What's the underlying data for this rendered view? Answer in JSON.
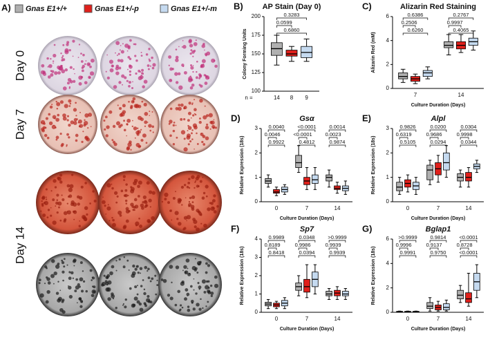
{
  "panel_a": {
    "label": "A)",
    "legend": [
      {
        "name": "Gnas E1+/+",
        "color": "#b0b0b0"
      },
      {
        "name": "Gnas E1+/-p",
        "color": "#e0201b"
      },
      {
        "name": "Gnas E1+/-m",
        "color": "#c5daf0"
      }
    ],
    "rows": [
      "Day 0",
      "Day 7",
      "Day 14"
    ]
  },
  "chart_data": [
    {
      "type": "box",
      "panel": "B)",
      "title": "AP Stain (Day 0)",
      "ylabel": "Colony Forming Units",
      "ylim": [
        100,
        200
      ],
      "yticks": [
        100,
        125,
        150,
        175,
        200
      ],
      "n_label": "n =",
      "n": [
        14,
        8,
        9
      ],
      "series": [
        {
          "color": "#b0b0b0",
          "boxes": [
            {
              "min": 135,
              "q1": 148,
              "median": 157,
              "q3": 165,
              "max": 175
            }
          ]
        },
        {
          "color": "#e0201b",
          "boxes": [
            {
              "min": 140,
              "q1": 147,
              "median": 150,
              "q3": 155,
              "max": 160
            }
          ]
        },
        {
          "color": "#c5daf0",
          "boxes": [
            {
              "min": 140,
              "q1": 145,
              "median": 152,
              "q3": 160,
              "max": 170
            }
          ]
        }
      ],
      "annotations": [
        "0.3283",
        "0.0599",
        "0.6860"
      ]
    },
    {
      "type": "box",
      "panel": "C)",
      "title": "Alizarin Red Staining",
      "ylabel": "Alizarin Red (mM)",
      "xlabel": "Culture Duration (Days)",
      "categories": [
        "7",
        "14"
      ],
      "ylim": [
        0,
        6
      ],
      "yticks": [
        0,
        2,
        4,
        6
      ],
      "series": [
        {
          "color": "#b0b0b0",
          "boxes": [
            {
              "min": 0.5,
              "q1": 0.8,
              "median": 1.0,
              "q3": 1.3,
              "max": 1.6
            },
            {
              "min": 2.8,
              "q1": 3.4,
              "median": 3.6,
              "q3": 3.9,
              "max": 4.5
            }
          ]
        },
        {
          "color": "#e0201b",
          "boxes": [
            {
              "min": 0.4,
              "q1": 0.6,
              "median": 0.8,
              "q3": 1.0,
              "max": 1.2
            },
            {
              "min": 3.0,
              "q1": 3.3,
              "median": 3.6,
              "q3": 3.9,
              "max": 4.5
            }
          ]
        },
        {
          "color": "#c5daf0",
          "boxes": [
            {
              "min": 0.8,
              "q1": 1.0,
              "median": 1.3,
              "q3": 1.5,
              "max": 1.8
            },
            {
              "min": 3.2,
              "q1": 3.6,
              "median": 3.9,
              "q3": 4.2,
              "max": 4.8
            }
          ]
        }
      ],
      "annotations": [
        "0.6386",
        "0.2506",
        "0.6260",
        "0.2767",
        "0.9997",
        "0.4065"
      ]
    },
    {
      "type": "box",
      "panel": "D)",
      "title": "Gsα",
      "title_italic": true,
      "ylabel": "Relative Expression (18s)",
      "xlabel": "Culture Duration (Days)",
      "categories": [
        "0",
        "7",
        "14"
      ],
      "ylim": [
        0,
        3
      ],
      "yticks": [
        0,
        1,
        2,
        3
      ],
      "series": [
        {
          "color": "#b0b0b0",
          "boxes": [
            {
              "min": 0.6,
              "q1": 0.75,
              "median": 0.85,
              "q3": 0.95,
              "max": 1.1
            },
            {
              "min": 1.2,
              "q1": 1.4,
              "median": 1.6,
              "q3": 1.9,
              "max": 2.3
            },
            {
              "min": 0.6,
              "q1": 0.85,
              "median": 1.0,
              "q3": 1.1,
              "max": 1.3
            }
          ]
        },
        {
          "color": "#e0201b",
          "boxes": [
            {
              "min": 0.25,
              "q1": 0.35,
              "median": 0.4,
              "q3": 0.5,
              "max": 0.6
            },
            {
              "min": 0.5,
              "q1": 0.7,
              "median": 0.85,
              "q3": 1.0,
              "max": 1.4
            },
            {
              "min": 0.35,
              "q1": 0.5,
              "median": 0.55,
              "q3": 0.65,
              "max": 0.8
            }
          ]
        },
        {
          "color": "#c5daf0",
          "boxes": [
            {
              "min": 0.3,
              "q1": 0.4,
              "median": 0.5,
              "q3": 0.6,
              "max": 0.7
            },
            {
              "min": 0.5,
              "q1": 0.75,
              "median": 0.9,
              "q3": 1.1,
              "max": 1.4
            },
            {
              "min": 0.3,
              "q1": 0.45,
              "median": 0.55,
              "q3": 0.65,
              "max": 0.85
            }
          ]
        }
      ],
      "annotations": [
        "0.0040",
        "0.0046",
        "0.9922",
        "<0.0001",
        "<0.0001",
        "0.4812",
        "0.0014",
        "0.0023",
        "0.9874"
      ]
    },
    {
      "type": "box",
      "panel": "E)",
      "title": "Alpl",
      "title_italic": true,
      "ylabel": "Relative Expression (18s)",
      "xlabel": "Culture Duration (Days)",
      "categories": [
        "0",
        "7",
        "14"
      ],
      "ylim": [
        0,
        3
      ],
      "yticks": [
        0,
        1,
        2,
        3
      ],
      "series": [
        {
          "color": "#b0b0b0",
          "boxes": [
            {
              "min": 0.3,
              "q1": 0.45,
              "median": 0.6,
              "q3": 0.8,
              "max": 1.0
            },
            {
              "min": 0.7,
              "q1": 0.9,
              "median": 1.3,
              "q3": 1.5,
              "max": 1.7
            },
            {
              "min": 0.6,
              "q1": 0.85,
              "median": 1.0,
              "q3": 1.15,
              "max": 1.3
            }
          ]
        },
        {
          "color": "#e0201b",
          "boxes": [
            {
              "min": 0.4,
              "q1": 0.6,
              "median": 0.75,
              "q3": 0.9,
              "max": 1.1
            },
            {
              "min": 0.8,
              "q1": 1.1,
              "median": 1.35,
              "q3": 1.6,
              "max": 1.9
            },
            {
              "min": 0.6,
              "q1": 0.85,
              "median": 1.0,
              "q3": 1.2,
              "max": 1.4
            }
          ]
        },
        {
          "color": "#c5daf0",
          "boxes": [
            {
              "min": 0.3,
              "q1": 0.5,
              "median": 0.65,
              "q3": 0.8,
              "max": 1.0
            },
            {
              "min": 1.0,
              "q1": 1.3,
              "median": 1.6,
              "q3": 2.0,
              "max": 2.3
            },
            {
              "min": 1.2,
              "q1": 1.35,
              "median": 1.45,
              "q3": 1.55,
              "max": 1.7
            }
          ]
        }
      ],
      "annotations": [
        "0.9826",
        "0.6319",
        "0.5105",
        "0.0200",
        "0.9686",
        "0.0294",
        "0.0304",
        "0.9998",
        "0.0344"
      ]
    },
    {
      "type": "box",
      "panel": "F)",
      "title": "Sp7",
      "title_italic": true,
      "ylabel": "Relative Expression (18s)",
      "xlabel": "Culture Duration (Days)",
      "categories": [
        "0",
        "7",
        "14"
      ],
      "ylim": [
        0,
        4
      ],
      "yticks": [
        0,
        1,
        2,
        3,
        4
      ],
      "series": [
        {
          "color": "#b0b0b0",
          "boxes": [
            {
              "min": 0.2,
              "q1": 0.35,
              "median": 0.45,
              "q3": 0.55,
              "max": 0.7
            },
            {
              "min": 0.9,
              "q1": 1.2,
              "median": 1.4,
              "q3": 1.6,
              "max": 2.0
            },
            {
              "min": 0.7,
              "q1": 0.9,
              "median": 1.0,
              "q3": 1.15,
              "max": 1.3
            }
          ]
        },
        {
          "color": "#e0201b",
          "boxes": [
            {
              "min": 0.2,
              "q1": 0.3,
              "median": 0.4,
              "q3": 0.5,
              "max": 0.6
            },
            {
              "min": 0.8,
              "q1": 1.1,
              "median": 1.4,
              "q3": 1.8,
              "max": 2.6
            },
            {
              "min": 0.7,
              "q1": 0.9,
              "median": 1.05,
              "q3": 1.2,
              "max": 1.4
            }
          ]
        },
        {
          "color": "#c5daf0",
          "boxes": [
            {
              "min": 0.2,
              "q1": 0.35,
              "median": 0.5,
              "q3": 0.65,
              "max": 0.8
            },
            {
              "min": 1.0,
              "q1": 1.4,
              "median": 1.8,
              "q3": 2.2,
              "max": 2.6
            },
            {
              "min": 0.7,
              "q1": 0.9,
              "median": 1.0,
              "q3": 1.15,
              "max": 1.3
            }
          ]
        }
      ],
      "annotations": [
        "0.9989",
        "0.8189",
        "0.8418",
        "0.0348",
        "0.9986",
        "0.0394",
        ">0.9999",
        "0.9939",
        "0.9939"
      ]
    },
    {
      "type": "box",
      "panel": "G)",
      "title": "Bglap1",
      "title_italic": true,
      "ylabel": "Relative Expression (18s)",
      "xlabel": "Culture Duration (Days)",
      "categories": [
        "0",
        "7",
        "14"
      ],
      "ylim": [
        0,
        6
      ],
      "yticks": [
        0,
        2,
        4,
        6
      ],
      "series": [
        {
          "color": "#b0b0b0",
          "boxes": [
            {
              "min": 0.0,
              "q1": 0.02,
              "median": 0.05,
              "q3": 0.08,
              "max": 0.1
            },
            {
              "min": 0.1,
              "q1": 0.3,
              "median": 0.5,
              "q3": 0.8,
              "max": 1.2
            },
            {
              "min": 0.8,
              "q1": 1.1,
              "median": 1.4,
              "q3": 1.8,
              "max": 2.2
            }
          ]
        },
        {
          "color": "#e0201b",
          "boxes": [
            {
              "min": 0.0,
              "q1": 0.02,
              "median": 0.05,
              "q3": 0.08,
              "max": 0.1
            },
            {
              "min": 0.1,
              "q1": 0.2,
              "median": 0.4,
              "q3": 0.6,
              "max": 0.9
            },
            {
              "min": 0.5,
              "q1": 0.8,
              "median": 1.1,
              "q3": 1.6,
              "max": 3.2
            }
          ]
        },
        {
          "color": "#c5daf0",
          "boxes": [
            {
              "min": 0.0,
              "q1": 0.02,
              "median": 0.05,
              "q3": 0.08,
              "max": 0.1
            },
            {
              "min": 0.1,
              "q1": 0.2,
              "median": 0.4,
              "q3": 0.7,
              "max": 1.0
            },
            {
              "min": 1.2,
              "q1": 1.8,
              "median": 2.5,
              "q3": 3.2,
              "max": 3.9
            }
          ]
        }
      ],
      "annotations": [
        ">0.9999",
        "0.9996",
        "0.9991",
        "0.9814",
        "0.9137",
        "0.9750",
        "<0.0001",
        "0.8728",
        "<0.0001"
      ]
    }
  ]
}
